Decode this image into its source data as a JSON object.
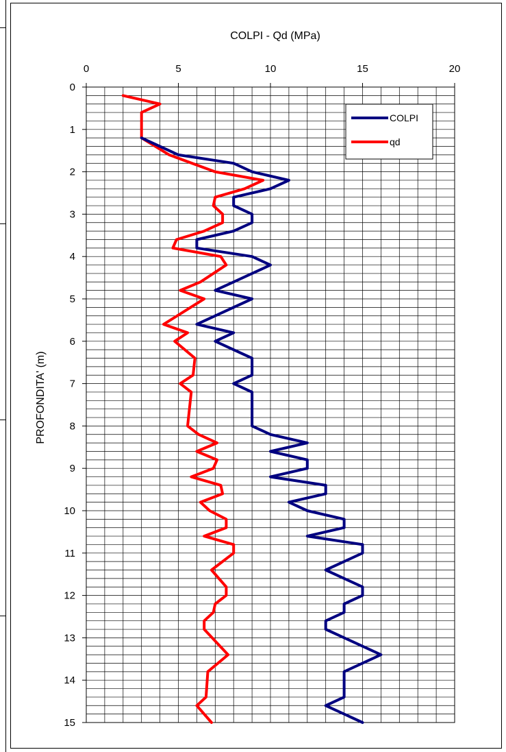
{
  "chart_data": {
    "type": "line",
    "title": "COLPI - Qd (MPa)",
    "xlabel": "",
    "ylabel": "PROFONDITA' (m)",
    "xlim": [
      0,
      20
    ],
    "ylim": [
      0,
      15
    ],
    "x_axis_position": "top",
    "y_axis_inverted": true,
    "x_ticks": [
      0,
      5,
      10,
      15,
      20
    ],
    "y_ticks": [
      0,
      1,
      2,
      3,
      4,
      5,
      6,
      7,
      8,
      9,
      10,
      11,
      12,
      13,
      14,
      15
    ],
    "x_minor_step": 1,
    "y_minor_step": 0.2,
    "grid": true,
    "legend_position": "top-right",
    "series": [
      {
        "name": "COLPI",
        "color": "#000080",
        "points": [
          [
            3,
            1.2
          ],
          [
            5,
            1.6
          ],
          [
            8,
            1.8
          ],
          [
            9,
            2.0
          ],
          [
            11,
            2.2
          ],
          [
            10,
            2.4
          ],
          [
            8,
            2.6
          ],
          [
            8,
            2.8
          ],
          [
            9,
            3.0
          ],
          [
            9,
            3.2
          ],
          [
            8,
            3.4
          ],
          [
            6,
            3.6
          ],
          [
            6,
            3.8
          ],
          [
            9,
            4.0
          ],
          [
            10,
            4.2
          ],
          [
            8,
            4.6
          ],
          [
            7,
            4.8
          ],
          [
            9,
            5.0
          ],
          [
            7,
            5.4
          ],
          [
            6,
            5.6
          ],
          [
            8,
            5.8
          ],
          [
            7,
            6.0
          ],
          [
            8,
            6.2
          ],
          [
            9,
            6.4
          ],
          [
            9,
            6.8
          ],
          [
            8,
            7.0
          ],
          [
            9,
            7.2
          ],
          [
            9,
            8.0
          ],
          [
            10,
            8.2
          ],
          [
            12,
            8.4
          ],
          [
            10,
            8.6
          ],
          [
            12,
            8.8
          ],
          [
            12,
            9.0
          ],
          [
            10,
            9.2
          ],
          [
            13,
            9.4
          ],
          [
            13,
            9.6
          ],
          [
            11,
            9.8
          ],
          [
            12,
            10.0
          ],
          [
            14,
            10.2
          ],
          [
            14,
            10.4
          ],
          [
            12,
            10.6
          ],
          [
            15,
            10.8
          ],
          [
            15,
            11.0
          ],
          [
            13,
            11.4
          ],
          [
            15,
            11.8
          ],
          [
            15,
            12.0
          ],
          [
            14,
            12.2
          ],
          [
            14,
            12.4
          ],
          [
            13,
            12.6
          ],
          [
            13,
            12.8
          ],
          [
            16,
            13.4
          ],
          [
            14,
            13.8
          ],
          [
            14,
            14.4
          ],
          [
            13,
            14.6
          ],
          [
            15,
            15.0
          ]
        ]
      },
      {
        "name": "qd",
        "color": "#ff0000",
        "points": [
          [
            2.0,
            0.2
          ],
          [
            4.0,
            0.4
          ],
          [
            3.0,
            0.6
          ],
          [
            3.0,
            0.8
          ],
          [
            3.0,
            1.0
          ],
          [
            3.0,
            1.2
          ],
          [
            4.5,
            1.6
          ],
          [
            7.0,
            2.0
          ],
          [
            9.6,
            2.2
          ],
          [
            8.6,
            2.4
          ],
          [
            7.0,
            2.6
          ],
          [
            6.9,
            2.8
          ],
          [
            7.4,
            3.0
          ],
          [
            7.4,
            3.2
          ],
          [
            6.4,
            3.4
          ],
          [
            4.9,
            3.6
          ],
          [
            4.7,
            3.8
          ],
          [
            7.3,
            4.0
          ],
          [
            7.6,
            4.2
          ],
          [
            6.2,
            4.6
          ],
          [
            5.1,
            4.8
          ],
          [
            6.4,
            5.0
          ],
          [
            4.2,
            5.6
          ],
          [
            5.5,
            5.8
          ],
          [
            4.8,
            6.0
          ],
          [
            5.9,
            6.4
          ],
          [
            5.8,
            6.8
          ],
          [
            5.1,
            7.0
          ],
          [
            5.7,
            7.2
          ],
          [
            5.5,
            8.0
          ],
          [
            6.1,
            8.2
          ],
          [
            7.1,
            8.4
          ],
          [
            6.0,
            8.6
          ],
          [
            7.1,
            8.8
          ],
          [
            6.9,
            9.0
          ],
          [
            5.7,
            9.2
          ],
          [
            7.3,
            9.4
          ],
          [
            7.4,
            9.6
          ],
          [
            6.2,
            9.8
          ],
          [
            6.7,
            10.0
          ],
          [
            7.6,
            10.2
          ],
          [
            7.6,
            10.4
          ],
          [
            6.4,
            10.6
          ],
          [
            8.0,
            10.8
          ],
          [
            8.0,
            11.0
          ],
          [
            6.8,
            11.4
          ],
          [
            7.6,
            11.8
          ],
          [
            7.6,
            12.0
          ],
          [
            7.0,
            12.2
          ],
          [
            6.9,
            12.4
          ],
          [
            6.4,
            12.6
          ],
          [
            6.4,
            12.8
          ],
          [
            7.7,
            13.4
          ],
          [
            6.6,
            13.8
          ],
          [
            6.5,
            14.4
          ],
          [
            6.0,
            14.6
          ],
          [
            6.8,
            15.0
          ]
        ]
      }
    ]
  }
}
